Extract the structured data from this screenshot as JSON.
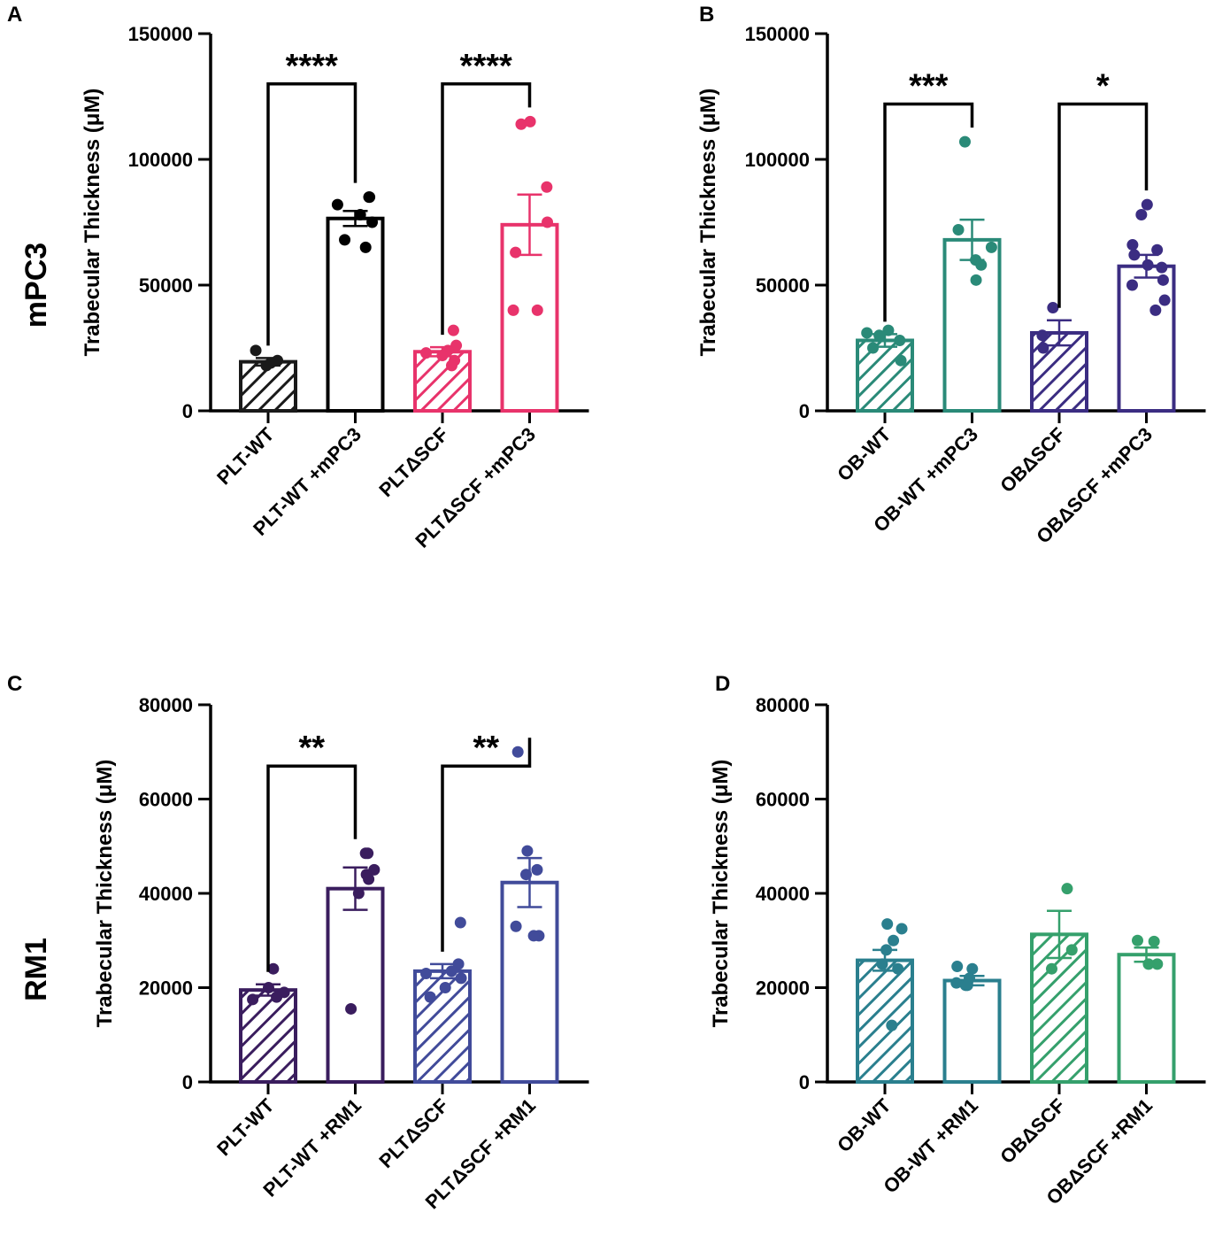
{
  "figure": {
    "row_labels": [
      {
        "id": "mpc3",
        "text": "mPC3"
      },
      {
        "id": "rm1",
        "text": "RM1"
      }
    ]
  },
  "chart_data": [
    {
      "panel": "A",
      "type": "bar",
      "ylabel_prefix": "Trabecular Thickness (",
      "ylabel_unit_mu": "μ",
      "ylabel_suffix": "M)",
      "ylim": [
        0,
        150000
      ],
      "yticks": [
        0,
        50000,
        100000,
        150000
      ],
      "ytick_labels": [
        "0",
        "50000",
        "100000",
        "150000"
      ],
      "categories": [
        "PLT-WT",
        "PLT-WT +mPC3",
        "PLTΔSCF",
        "PLTΔSCF +mPC3"
      ],
      "colors": [
        "#1a1a1a",
        "#000000",
        "#e8336b",
        "#e8336b"
      ],
      "hatched": [
        true,
        false,
        true,
        false
      ],
      "means": [
        19500,
        76500,
        23500,
        74000
      ],
      "sem": [
        1500,
        3000,
        1800,
        12000
      ],
      "points": [
        [
          24000,
          20000,
          19000,
          18000
        ],
        [
          85000,
          85000,
          82000,
          78000,
          75000,
          68000,
          65000
        ],
        [
          32000,
          26000,
          24000,
          23000,
          22000,
          20000,
          18000
        ],
        [
          115000,
          114000,
          89000,
          75000,
          63000,
          40000,
          40000
        ]
      ],
      "comparisons": [
        {
          "from": 0,
          "to": 1,
          "y": 130000,
          "label": "****"
        },
        {
          "from": 2,
          "to": 3,
          "y": 130000,
          "label": "****"
        }
      ]
    },
    {
      "panel": "B",
      "type": "bar",
      "ylabel_prefix": "Trabecular Thickness (",
      "ylabel_unit_mu": "μ",
      "ylabel_suffix": "M)",
      "ylim": [
        0,
        150000
      ],
      "yticks": [
        0,
        50000,
        100000,
        150000
      ],
      "ytick_labels": [
        "0",
        "50000",
        "100000",
        "150000"
      ],
      "categories": [
        "OB-WT",
        "OB-WT +mPC3",
        "OBΔSCF",
        "OBΔSCF +mPC3"
      ],
      "colors": [
        "#2a8a78",
        "#2a8a78",
        "#3b2d82",
        "#3b2d82"
      ],
      "hatched": [
        true,
        false,
        true,
        false
      ],
      "means": [
        28000,
        68000,
        31000,
        57500
      ],
      "sem": [
        2500,
        8000,
        5000,
        4500
      ],
      "points": [
        [
          32000,
          31000,
          30000,
          28000,
          25000,
          20000
        ],
        [
          107000,
          72000,
          65000,
          60000,
          58000,
          52000
        ],
        [
          41000,
          30000,
          25000
        ],
        [
          82000,
          78000,
          66000,
          64000,
          62000,
          58000,
          57000,
          52000,
          50000,
          44000,
          40000
        ]
      ],
      "comparisons": [
        {
          "from": 0,
          "to": 1,
          "y": 122000,
          "label": "***"
        },
        {
          "from": 2,
          "to": 3,
          "y": 122000,
          "label": "*"
        }
      ]
    },
    {
      "panel": "C",
      "type": "bar",
      "ylabel_prefix": "Trabecular Thickness (",
      "ylabel_unit_mu": "μ",
      "ylabel_suffix": "M)",
      "ylim": [
        0,
        80000
      ],
      "yticks": [
        0,
        20000,
        40000,
        60000,
        80000
      ],
      "ytick_labels": [
        "0",
        "20000",
        "40000",
        "60000",
        "80000"
      ],
      "categories": [
        "PLT-WT",
        "PLT-WT +RM1",
        "PLTΔSCF",
        "PLTΔSCF +RM1"
      ],
      "colors": [
        "#3a1d5e",
        "#3a1d5e",
        "#414b9a",
        "#414b9a"
      ],
      "hatched": [
        true,
        false,
        true,
        false
      ],
      "means": [
        19500,
        41000,
        23500,
        42300
      ],
      "sem": [
        1200,
        4500,
        1500,
        5200
      ],
      "points": [
        [
          24000,
          20000,
          19000,
          18000,
          17500
        ],
        [
          48500,
          48500,
          45000,
          44000,
          43000,
          40000,
          15500
        ],
        [
          33800,
          25000,
          23500,
          23000,
          22000,
          20000,
          18000
        ],
        [
          70000,
          49000,
          45000,
          44000,
          33000,
          31000,
          31000
        ]
      ],
      "comparisons": [
        {
          "from": 0,
          "to": 1,
          "y": 67000,
          "label": "**"
        },
        {
          "from": 2,
          "to": 3,
          "y": 67000,
          "label": "**"
        }
      ]
    },
    {
      "panel": "D",
      "type": "bar",
      "ylabel_prefix": "Trabecular Thickness (",
      "ylabel_unit_mu": "μ",
      "ylabel_suffix": "M)",
      "ylim": [
        0,
        80000
      ],
      "yticks": [
        0,
        20000,
        40000,
        60000,
        80000
      ],
      "ytick_labels": [
        "0",
        "20000",
        "40000",
        "60000",
        "80000"
      ],
      "categories": [
        "OB-WT",
        "OB-WT +RM1",
        "OBΔSCF",
        "OBΔSCF +RM1"
      ],
      "colors": [
        "#2a7f8e",
        "#2a7f8e",
        "#35a06c",
        "#35a06c"
      ],
      "hatched": [
        true,
        false,
        true,
        false
      ],
      "means": [
        25800,
        21500,
        31300,
        27000
      ],
      "sem": [
        2200,
        1000,
        5000,
        1500
      ],
      "points": [
        [
          33500,
          32500,
          30000,
          28000,
          25000,
          24000,
          12000
        ],
        [
          24500,
          24000,
          22000,
          21000,
          20500,
          20500
        ],
        [
          41000,
          28000,
          24000
        ],
        [
          30000,
          29800,
          25000,
          25000
        ]
      ],
      "comparisons": []
    }
  ]
}
